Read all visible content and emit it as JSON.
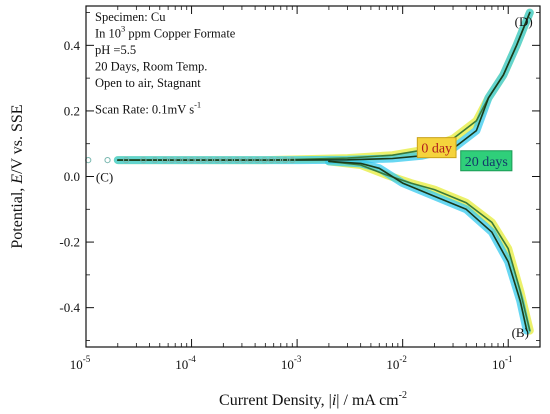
{
  "chart_data": {
    "type": "line",
    "xscale": "log",
    "xlim": [
      1e-05,
      0.2
    ],
    "ylim": [
      -0.52,
      0.52
    ],
    "x_ticks": [
      {
        "value": 1e-05,
        "base": "10",
        "exp": "-5"
      },
      {
        "value": 0.0001,
        "base": "10",
        "exp": "-4"
      },
      {
        "value": 0.001,
        "base": "10",
        "exp": "-3"
      },
      {
        "value": 0.01,
        "base": "10",
        "exp": "-2"
      },
      {
        "value": 0.1,
        "base": "10",
        "exp": "-1"
      }
    ],
    "y_ticks": [
      {
        "value": -0.4,
        "label": "-0.4"
      },
      {
        "value": -0.2,
        "label": "-0.2"
      },
      {
        "value": 0.0,
        "label": "0.0"
      },
      {
        "value": 0.2,
        "label": "0.2"
      },
      {
        "value": 0.4,
        "label": "0.4"
      }
    ],
    "xlabel": {
      "prefix": "Current Density, |",
      "italic": "i",
      "mid": "| / mA cm",
      "sup": "-2"
    },
    "ylabel": {
      "prefix": "Potential, ",
      "italic": "E",
      "suffix": "/V vs. SSE"
    },
    "series": [
      {
        "name": "0 day",
        "label_bg": "#f5d33c",
        "label_border": "#c9a21a",
        "label_color": "#b01e1e",
        "label_at": {
          "x": 0.021,
          "y": 0.088
        },
        "band_color": "#e6ec3a",
        "line_color": "#3a7a3a",
        "anodic": [
          [
            2e-05,
            0.05
          ],
          [
            0.0005,
            0.05
          ],
          [
            0.001,
            0.052
          ],
          [
            0.003,
            0.056
          ],
          [
            0.008,
            0.065
          ],
          [
            0.015,
            0.08
          ],
          [
            0.03,
            0.115
          ],
          [
            0.05,
            0.17
          ],
          [
            0.065,
            0.24
          ],
          [
            0.09,
            0.31
          ],
          [
            0.12,
            0.4
          ],
          [
            0.16,
            0.5
          ]
        ],
        "cathodic": [
          [
            0.002,
            0.046
          ],
          [
            0.004,
            0.035
          ],
          [
            0.007,
            0.005
          ],
          [
            0.012,
            -0.02
          ],
          [
            0.02,
            -0.04
          ],
          [
            0.04,
            -0.08
          ],
          [
            0.07,
            -0.14
          ],
          [
            0.1,
            -0.22
          ],
          [
            0.13,
            -0.35
          ],
          [
            0.16,
            -0.47
          ]
        ]
      },
      {
        "name": "20 days",
        "label_bg": "#2fcf7a",
        "label_border": "#1a9a55",
        "label_color": "#123a6a",
        "label_at": {
          "x": 0.062,
          "y": 0.048
        },
        "band_color": "#35c9ee",
        "line_color": "#1a3a1a",
        "anodic": [
          [
            2e-05,
            0.05
          ],
          [
            0.0005,
            0.05
          ],
          [
            0.001,
            0.05
          ],
          [
            0.003,
            0.051
          ],
          [
            0.008,
            0.055
          ],
          [
            0.015,
            0.063
          ],
          [
            0.03,
            0.085
          ],
          [
            0.05,
            0.14
          ],
          [
            0.065,
            0.24
          ],
          [
            0.09,
            0.31
          ],
          [
            0.12,
            0.4
          ],
          [
            0.16,
            0.5
          ]
        ],
        "cathodic": [
          [
            0.002,
            0.046
          ],
          [
            0.004,
            0.04
          ],
          [
            0.006,
            0.025
          ],
          [
            0.01,
            -0.02
          ],
          [
            0.02,
            -0.06
          ],
          [
            0.04,
            -0.1
          ],
          [
            0.07,
            -0.17
          ],
          [
            0.1,
            -0.26
          ],
          [
            0.13,
            -0.38
          ],
          [
            0.15,
            -0.47
          ]
        ]
      }
    ],
    "scatter_points": {
      "color": "#7ab8b0",
      "x": [
        1.05e-05,
        1.6e-05,
        2.4e-05,
        3.5e-05,
        4.5e-05,
        5.6e-05,
        6.5e-05,
        7.5e-05,
        8.7e-05,
        0.0001,
        0.000115,
        0.00013,
        0.00015,
        0.000175,
        0.0002,
        0.00023,
        0.00027,
        0.00031,
        0.00036,
        0.00042,
        0.00049,
        0.00057,
        0.00066,
        0.00077,
        0.0009
      ],
      "y": 0.05
    },
    "point_labels": [
      {
        "text": "(C)",
        "x": 1.5e-05,
        "y": 0.0
      },
      {
        "text": "(D)",
        "x": 0.14,
        "y": 0.475
      },
      {
        "text": "(B)",
        "x": 0.13,
        "y": -0.475
      }
    ],
    "info_block": [
      {
        "text": "Specimen: Cu"
      },
      {
        "text_before": "In 10",
        "sup": "3",
        "text_after": " ppm Copper Formate"
      },
      {
        "text": "pH =5.5"
      },
      {
        "text": "20 Days, Room Temp."
      },
      {
        "text": "Open to air, Stagnant"
      },
      {
        "text_before": "Scan Rate: 0.1mV s",
        "sup": "-1",
        "text_after": ""
      }
    ],
    "grid": false,
    "legend": "inline"
  }
}
